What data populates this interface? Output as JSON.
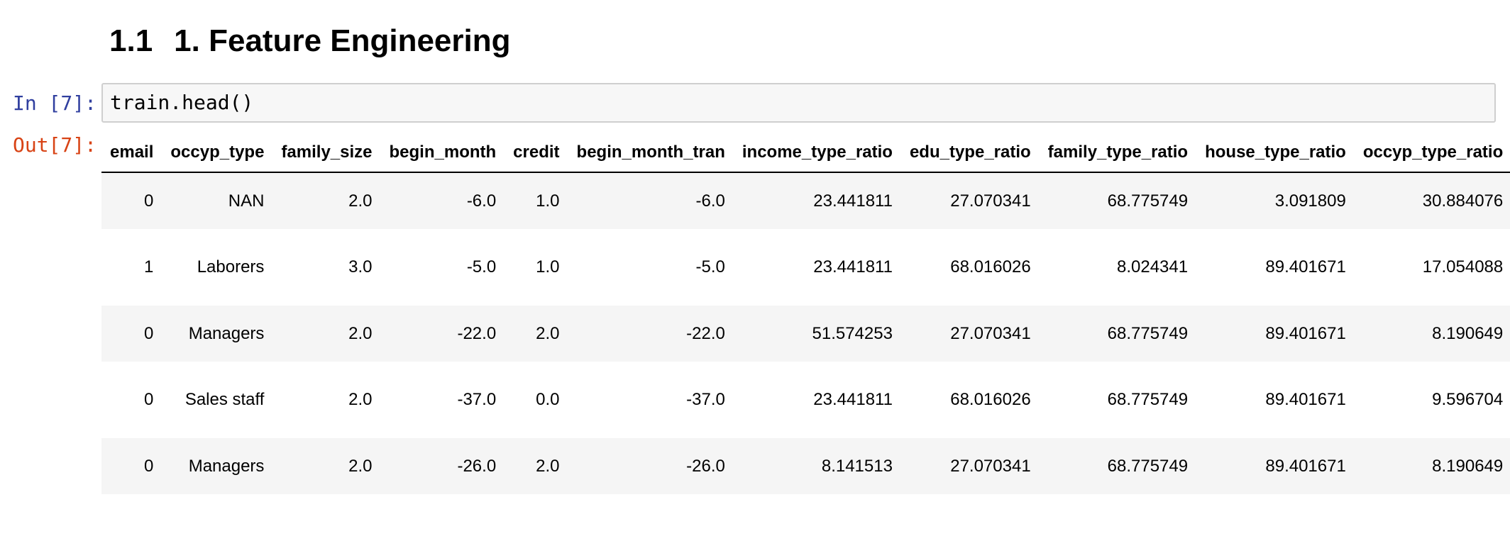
{
  "section_heading": {
    "number": "1.1",
    "title": "1. Feature Engineering"
  },
  "cell": {
    "input_prompt": "In [7]:",
    "code": "train.head()",
    "output_prompt": "Out[7]:"
  },
  "table": {
    "columns": [
      "email",
      "occyp_type",
      "family_size",
      "begin_month",
      "credit",
      "begin_month_tran",
      "income_type_ratio",
      "edu_type_ratio",
      "family_type_ratio",
      "house_type_ratio",
      "occyp_type_ratio"
    ],
    "rows": [
      [
        "0",
        "NAN",
        "2.0",
        "-6.0",
        "1.0",
        "-6.0",
        "23.441811",
        "27.070341",
        "68.775749",
        "3.091809",
        "30.884076"
      ],
      [
        "1",
        "Laborers",
        "3.0",
        "-5.0",
        "1.0",
        "-5.0",
        "23.441811",
        "68.016026",
        "8.024341",
        "89.401671",
        "17.054088"
      ],
      [
        "0",
        "Managers",
        "2.0",
        "-22.0",
        "2.0",
        "-22.0",
        "51.574253",
        "27.070341",
        "68.775749",
        "89.401671",
        "8.190649"
      ],
      [
        "0",
        "Sales staff",
        "2.0",
        "-37.0",
        "0.0",
        "-37.0",
        "23.441811",
        "68.016026",
        "68.775749",
        "89.401671",
        "9.596704"
      ],
      [
        "0",
        "Managers",
        "2.0",
        "-26.0",
        "2.0",
        "-26.0",
        "8.141513",
        "27.070341",
        "68.775749",
        "89.401671",
        "8.190649"
      ]
    ]
  }
}
